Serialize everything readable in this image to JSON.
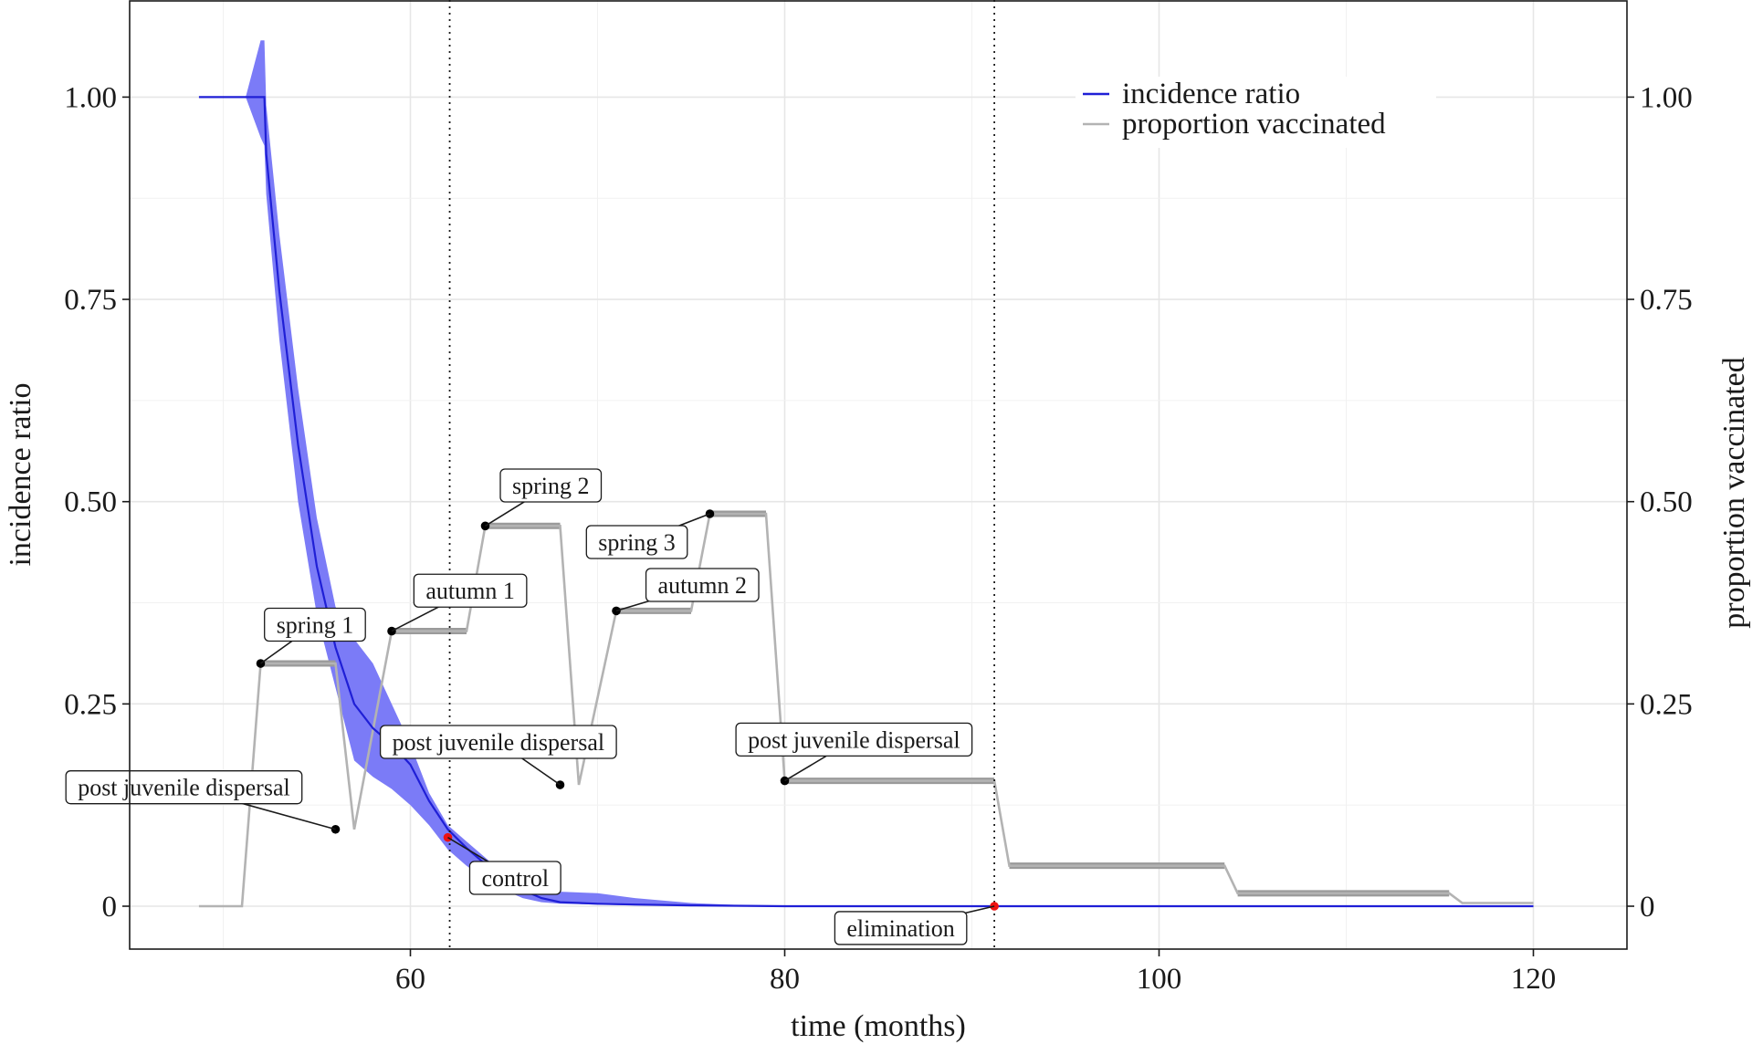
{
  "chart_data": {
    "type": "line",
    "title": "",
    "xlabel": "time (months)",
    "ylabel_left": "incidence ratio",
    "ylabel_right": "proportion vaccinated",
    "xlim": [
      45,
      125
    ],
    "ylim": [
      -0.053,
      1.12
    ],
    "x_ticks": [
      60,
      80,
      100,
      120
    ],
    "x_tick_labels": [
      "60",
      "80",
      "100",
      "120"
    ],
    "y_ticks": [
      0,
      0.25,
      0.5,
      0.75,
      1.0
    ],
    "y_tick_labels": [
      "0",
      "0.25",
      "0.50",
      "0.75",
      "1.00"
    ],
    "grid": true,
    "legend_position": "top-right",
    "legend": [
      {
        "label": "incidence ratio",
        "color": "#1f1fd6"
      },
      {
        "label": "proportion vaccinated",
        "color": "#b3b3b3"
      }
    ],
    "vlines": [
      62.1,
      91.2
    ],
    "series": [
      {
        "name": "incidence ratio",
        "color": "#1f1fd6",
        "x": [
          48.7,
          51.2,
          52.2,
          52.3,
          53.0,
          54.0,
          55.0,
          56.0,
          57.0,
          58.0,
          59.0,
          60.0,
          61.0,
          62.0,
          63.0,
          64.0,
          65.0,
          66.0,
          67.0,
          68.0,
          70.0,
          72.0,
          75.0,
          78.0,
          80.0,
          85.0,
          91.0,
          100.0,
          110.0,
          120.0
        ],
        "y": [
          1.0,
          1.0,
          1.0,
          0.93,
          0.76,
          0.57,
          0.42,
          0.32,
          0.25,
          0.22,
          0.2,
          0.175,
          0.13,
          0.095,
          0.072,
          0.052,
          0.035,
          0.02,
          0.01,
          0.005,
          0.003,
          0.002,
          0.001,
          0.0005,
          0.0,
          0.0,
          0.0,
          0.0,
          0.0,
          0.0
        ]
      },
      {
        "name": "proportion vaccinated",
        "color": "#b3b3b3",
        "x": [
          48.7,
          51.0,
          52.0,
          56.0,
          57.0,
          59.0,
          63.0,
          64.0,
          68.0,
          69.0,
          71.0,
          75.0,
          76.0,
          79.0,
          80.0,
          91.2,
          92.0,
          103.5,
          104.2,
          115.5,
          116.2,
          120.0
        ],
        "y": [
          0.0,
          0.0,
          0.3,
          0.3,
          0.095,
          0.34,
          0.34,
          0.47,
          0.47,
          0.15,
          0.365,
          0.365,
          0.485,
          0.485,
          0.155,
          0.155,
          0.05,
          0.05,
          0.016,
          0.016,
          0.004,
          0.004
        ]
      }
    ],
    "ci_band": {
      "x": [
        48.7,
        51.2,
        52.0,
        52.2,
        52.3,
        53.0,
        54.0,
        55.0,
        56.0,
        57.0,
        58.0,
        59.0,
        60.0,
        61.0,
        62.0,
        63.0,
        64.0,
        65.0,
        66.0,
        67.0,
        68.0,
        70.0,
        72.0,
        75.0,
        78.0,
        80.0,
        120.0
      ],
      "upper": [
        1.0,
        1.0,
        1.07,
        1.07,
        0.99,
        0.83,
        0.64,
        0.48,
        0.37,
        0.33,
        0.3,
        0.25,
        0.2,
        0.14,
        0.1,
        0.08,
        0.06,
        0.04,
        0.028,
        0.02,
        0.018,
        0.016,
        0.01,
        0.004,
        0.001,
        0.0,
        0.0
      ],
      "lower": [
        1.0,
        1.0,
        0.95,
        0.94,
        0.88,
        0.7,
        0.5,
        0.36,
        0.27,
        0.18,
        0.16,
        0.145,
        0.125,
        0.1,
        0.07,
        0.05,
        0.034,
        0.02,
        0.01,
        0.005,
        0.003,
        0.002,
        0.001,
        0.0005,
        0.0,
        0.0,
        0.0
      ]
    },
    "points": [
      {
        "x": 52.0,
        "y": 0.3,
        "color": "black"
      },
      {
        "x": 56.0,
        "y": 0.095,
        "color": "black"
      },
      {
        "x": 59.0,
        "y": 0.34,
        "color": "black"
      },
      {
        "x": 64.0,
        "y": 0.47,
        "color": "black"
      },
      {
        "x": 68.0,
        "y": 0.15,
        "color": "black"
      },
      {
        "x": 71.0,
        "y": 0.365,
        "color": "black"
      },
      {
        "x": 76.0,
        "y": 0.485,
        "color": "black"
      },
      {
        "x": 80.0,
        "y": 0.155,
        "color": "black"
      },
      {
        "x": 62.0,
        "y": 0.085,
        "color": "red"
      },
      {
        "x": 91.2,
        "y": 0.0,
        "color": "red"
      }
    ],
    "annotations": [
      {
        "text": "spring 1",
        "point_x": 52.0,
        "point_y": 0.3,
        "label_x": 54.9,
        "label_y": 0.348
      },
      {
        "text": "post juvenile dispersal",
        "point_x": 56.0,
        "point_y": 0.095,
        "label_x": 47.9,
        "label_y": 0.147
      },
      {
        "text": "autumn 1",
        "point_x": 59.0,
        "point_y": 0.34,
        "label_x": 63.2,
        "label_y": 0.39
      },
      {
        "text": "post juvenile dispersal",
        "point_x": 68.0,
        "point_y": 0.15,
        "label_x": 64.7,
        "label_y": 0.203
      },
      {
        "text": "spring 2",
        "point_x": 64.0,
        "point_y": 0.47,
        "label_x": 67.5,
        "label_y": 0.52
      },
      {
        "text": "spring 3",
        "point_x": 76.0,
        "point_y": 0.485,
        "label_x": 72.1,
        "label_y": 0.45
      },
      {
        "text": "autumn 2",
        "point_x": 71.0,
        "point_y": 0.365,
        "label_x": 75.6,
        "label_y": 0.397
      },
      {
        "text": "post juvenile dispersal",
        "point_x": 80.0,
        "point_y": 0.155,
        "label_x": 83.7,
        "label_y": 0.206
      },
      {
        "text": "control",
        "point_x": 62.0,
        "point_y": 0.085,
        "label_x": 65.6,
        "label_y": 0.035
      },
      {
        "text": "elimination",
        "point_x": 91.2,
        "point_y": 0.0,
        "label_x": 86.2,
        "label_y": -0.027
      }
    ]
  }
}
